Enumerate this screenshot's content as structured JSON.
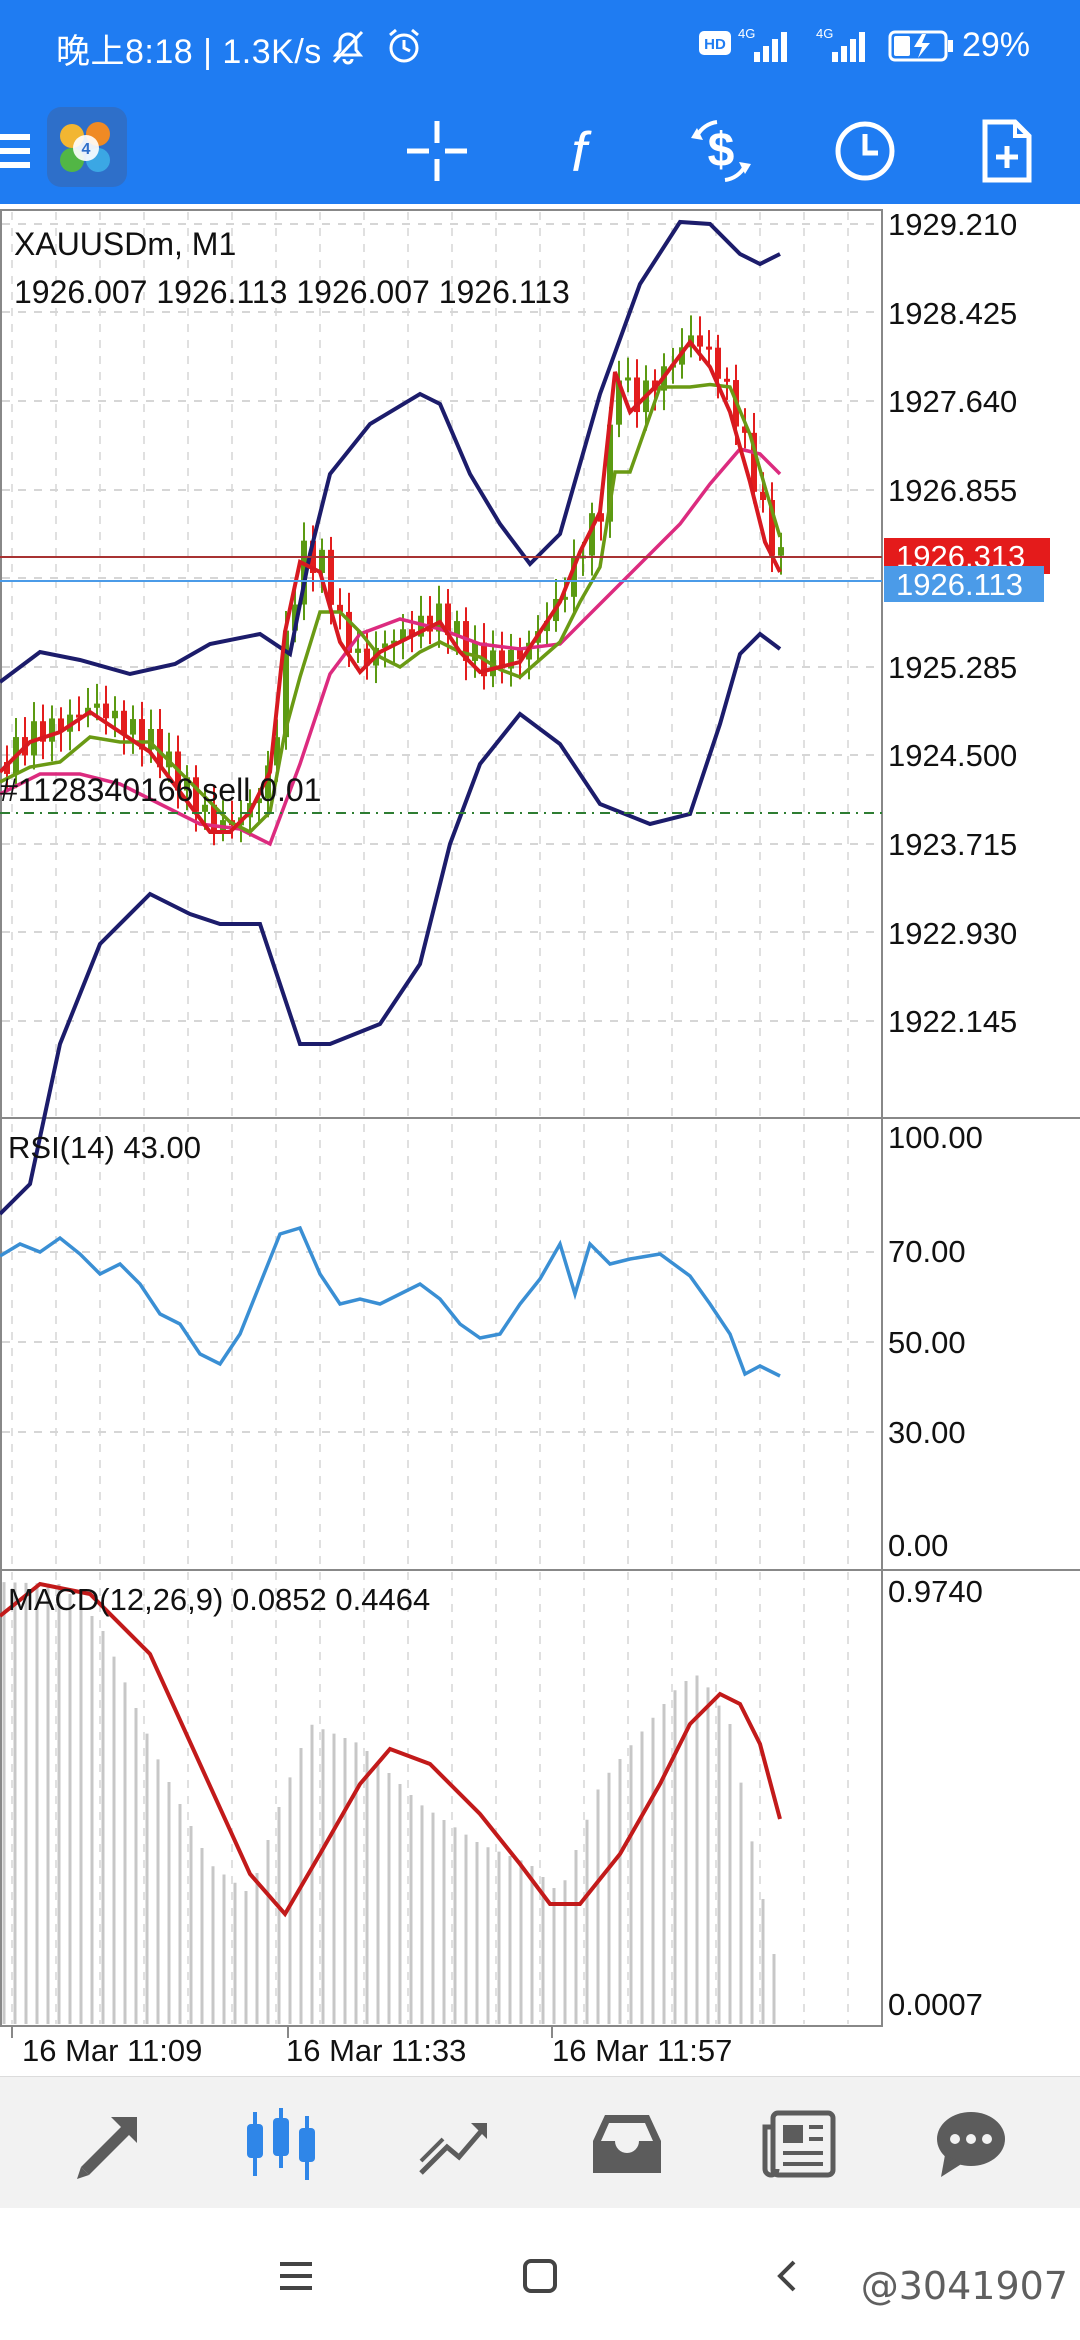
{
  "status_bar": {
    "time_speed": "晚上8:18 | 1.3K/s",
    "network_1": "4G",
    "network_2": "4G",
    "battery": "29%"
  },
  "toolbar": {
    "items": [
      "menu-icon",
      "app-logo",
      "crosshair-icon",
      "indicators-icon",
      "trade-icon",
      "timeframe-icon",
      "new-order-icon"
    ],
    "indicator_glyph": "f"
  },
  "chart": {
    "symbol_title": "XAUUSDm, M1",
    "ohlc": "1926.007 1926.113 1926.007 1926.113",
    "order_label": "#1128340166 sell 0.01",
    "price_labels": [
      "1929.210",
      "1928.425",
      "1927.640",
      "1926.855",
      "1925.285",
      "1924.500",
      "1923.715",
      "1922.930",
      "1922.145"
    ],
    "ask_label": "1926.313",
    "bid_label": "1926.113",
    "time_labels": [
      "16 Mar 11:09",
      "16 Mar 11:33",
      "16 Mar 11:57"
    ],
    "colors": {
      "bull": "#5b9a12",
      "bear": "#e31d1d",
      "bands": "#1c1c6b",
      "ma_fast": "#d71920",
      "ma_mid": "#6a9a14",
      "ma_slow": "#dc2b7f",
      "ask_line": "#a83232",
      "bid_line": "#4b9be8",
      "rsi": "#3a8fd4",
      "macd_signal": "#c21a1a",
      "macd_hist": "#c7c7c7"
    }
  },
  "rsi": {
    "title": "RSI(14) 43.00",
    "levels": [
      "100.00",
      "70.00",
      "50.00",
      "30.00",
      "0.00"
    ]
  },
  "macd": {
    "title": "MACD(12,26,9) 0.0852 0.4464",
    "levels": [
      "0.9740",
      "0.0007"
    ]
  },
  "bottom_nav": {
    "items": [
      "quotes-icon",
      "chart-icon",
      "trade-icon",
      "history-icon",
      "news-icon",
      "messages-icon"
    ],
    "active": "chart-icon"
  },
  "watermark": "@3041907"
}
